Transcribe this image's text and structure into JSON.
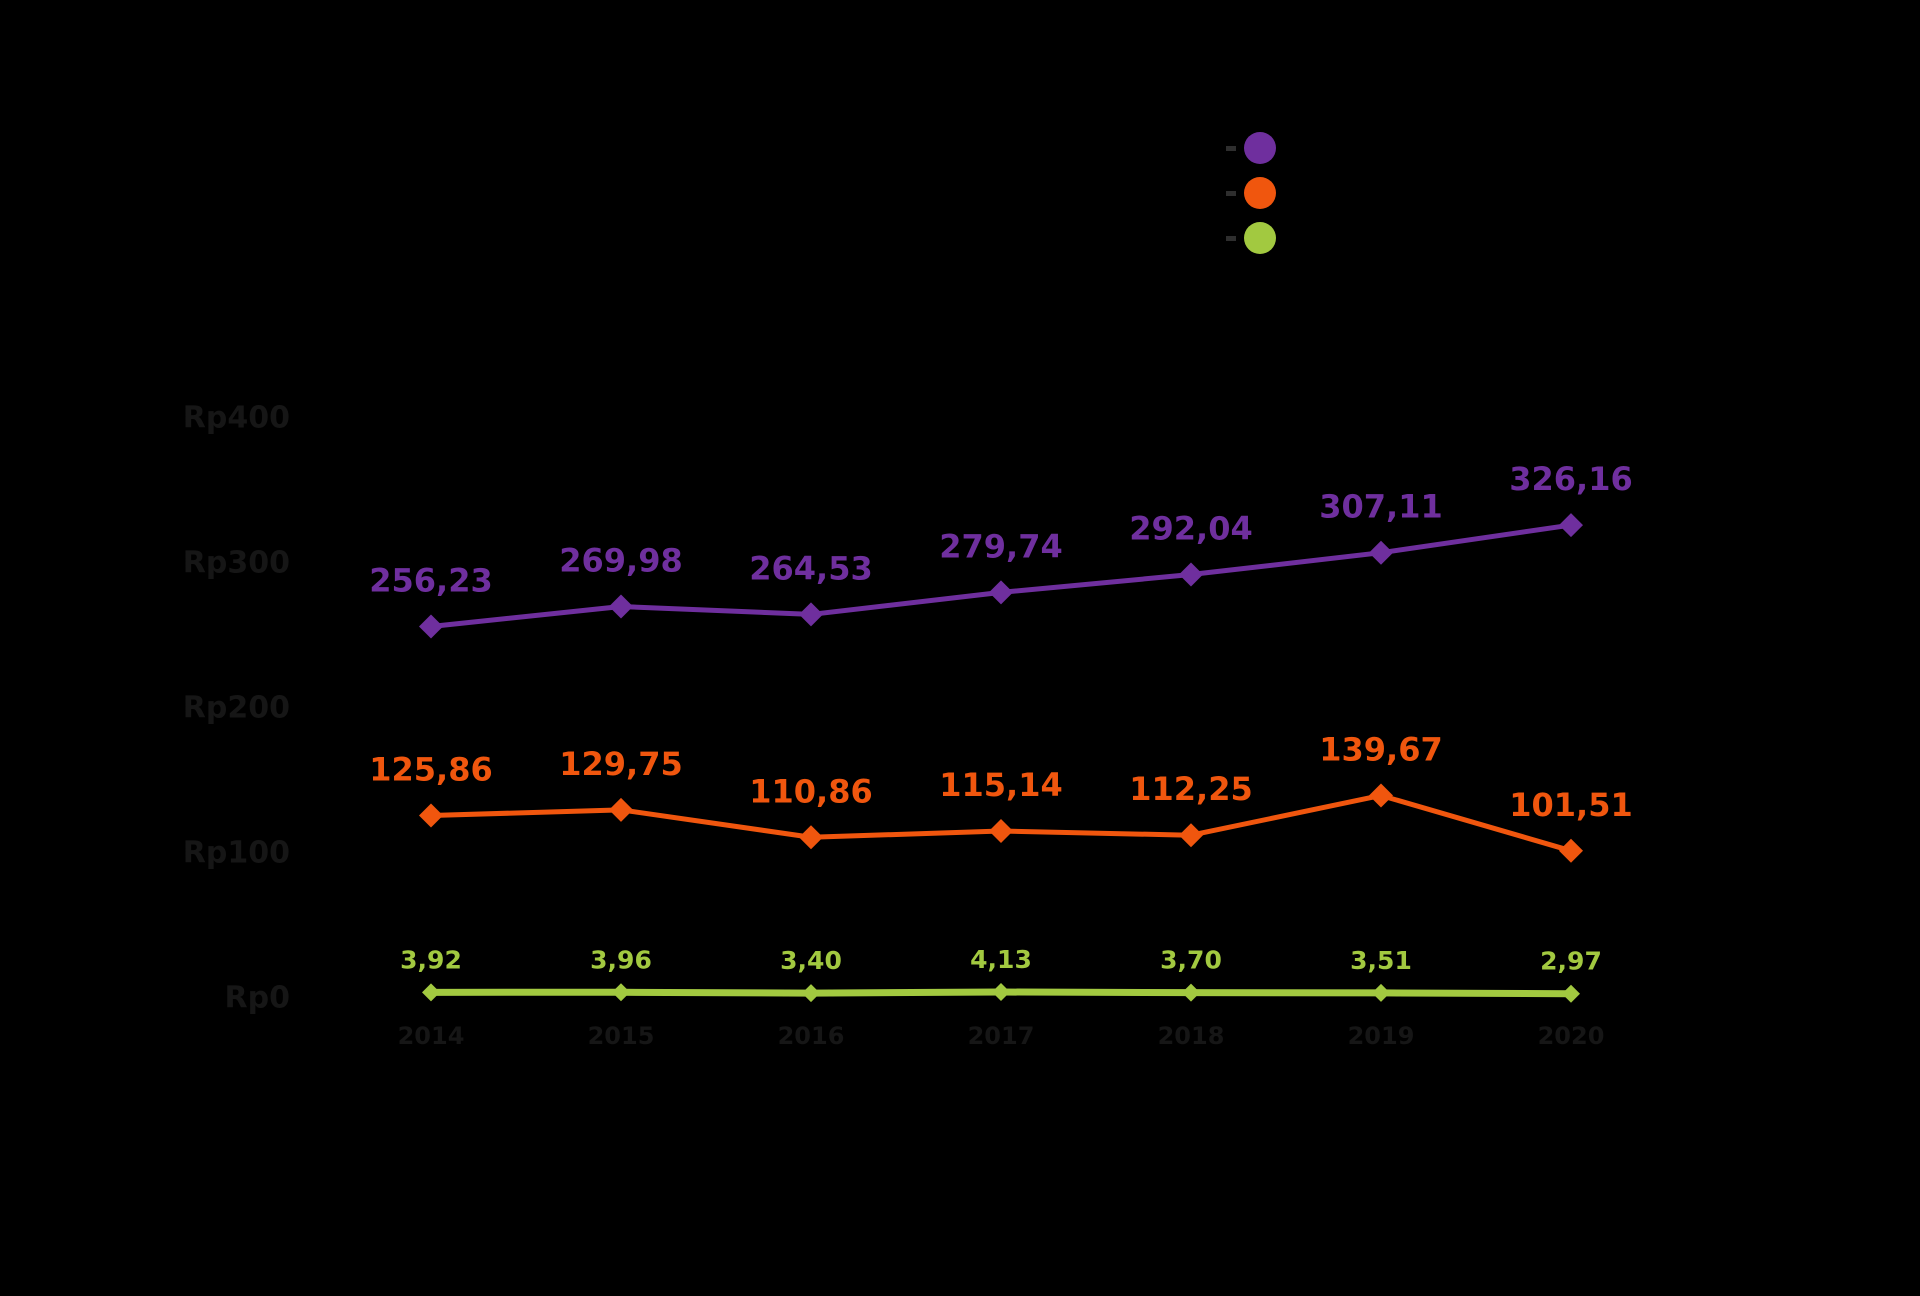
{
  "colors": {
    "background": "#000000",
    "muted_text": "#161616",
    "purple": "#6f2f9e",
    "orange": "#f0560e",
    "green": "#a2c940"
  },
  "legend": {
    "items": [
      {
        "color": "#6f2f9e",
        "label": ""
      },
      {
        "color": "#f0560e",
        "label": ""
      },
      {
        "color": "#a2c940",
        "label": ""
      }
    ]
  },
  "chart_data": {
    "type": "line",
    "title": "",
    "xlabel": "",
    "ylabel": "",
    "grid": false,
    "legend_position": "top-right",
    "categories": [
      "2014",
      "2015",
      "2016",
      "2017",
      "2018",
      "2019",
      "2020"
    ],
    "series": [
      {
        "name": "purple-series",
        "color": "#6f2f9e",
        "values": [
          256.23,
          269.98,
          264.53,
          279.74,
          292.04,
          307.11,
          326.16
        ],
        "labels": [
          "256,23",
          "269,98",
          "264,53",
          "279,74",
          "292,04",
          "307,11",
          "326,16"
        ]
      },
      {
        "name": "orange-series",
        "color": "#f0560e",
        "values": [
          125.86,
          129.75,
          110.86,
          115.14,
          112.25,
          139.67,
          101.51
        ],
        "labels": [
          "125,86",
          "129,75",
          "110,86",
          "115,14",
          "112,25",
          "139,67",
          "101,51"
        ]
      },
      {
        "name": "green-series",
        "color": "#a2c940",
        "values": [
          3.92,
          3.96,
          3.4,
          4.13,
          3.7,
          3.51,
          2.97
        ],
        "labels": [
          "3,92",
          "3,96",
          "3,40",
          "4,13",
          "3,70",
          "3,51",
          "2,97"
        ]
      }
    ],
    "yticks": [
      {
        "label": "Rp400",
        "value": 400
      },
      {
        "label": "Rp300",
        "value": 300
      },
      {
        "label": "Rp200",
        "value": 200
      },
      {
        "label": "Rp100",
        "value": 100
      },
      {
        "label": "Rp0",
        "value": 0
      }
    ],
    "ylim": [
      0,
      430
    ]
  }
}
